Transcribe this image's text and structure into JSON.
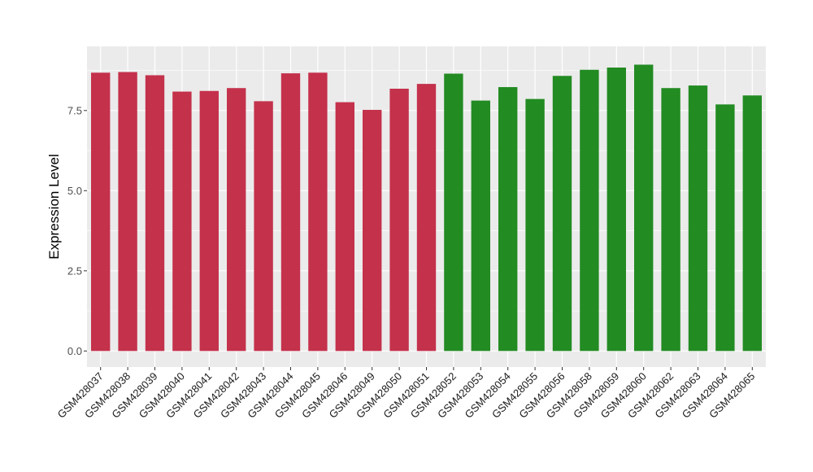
{
  "chart_data": {
    "type": "bar",
    "xlabel": "",
    "ylabel": "Expression Level",
    "ylim": [
      -0.5,
      9.5
    ],
    "yticks": [
      0.0,
      2.5,
      5.0,
      7.5
    ],
    "ytick_labels": [
      "0.0",
      "2.5",
      "5.0",
      "7.5"
    ],
    "grid": true,
    "background": "#ebebeb",
    "gridline_color": "#ffffff",
    "categories": [
      "GSM428037",
      "GSM428038",
      "GSM428039",
      "GSM428040",
      "GSM428041",
      "GSM428042",
      "GSM428043",
      "GSM428044",
      "GSM428045",
      "GSM428046",
      "GSM428049",
      "GSM428050",
      "GSM428051",
      "GSM428052",
      "GSM428053",
      "GSM428054",
      "GSM428055",
      "GSM428056",
      "GSM428058",
      "GSM428059",
      "GSM428060",
      "GSM428062",
      "GSM428063",
      "GSM428064",
      "GSM428065"
    ],
    "values": [
      8.68,
      8.7,
      8.6,
      8.09,
      8.11,
      8.2,
      7.79,
      8.66,
      8.68,
      7.76,
      7.52,
      8.18,
      8.33,
      8.65,
      7.81,
      8.23,
      7.86,
      8.58,
      8.77,
      8.84,
      8.93,
      8.2,
      8.28,
      7.69,
      7.97
    ],
    "bar_colors": [
      "#c4314b",
      "#c4314b",
      "#c4314b",
      "#c4314b",
      "#c4314b",
      "#c4314b",
      "#c4314b",
      "#c4314b",
      "#c4314b",
      "#c4314b",
      "#c4314b",
      "#c4314b",
      "#c4314b",
      "#228b22",
      "#228b22",
      "#228b22",
      "#228b22",
      "#228b22",
      "#228b22",
      "#228b22",
      "#228b22",
      "#228b22",
      "#228b22",
      "#228b22",
      "#228b22"
    ]
  }
}
